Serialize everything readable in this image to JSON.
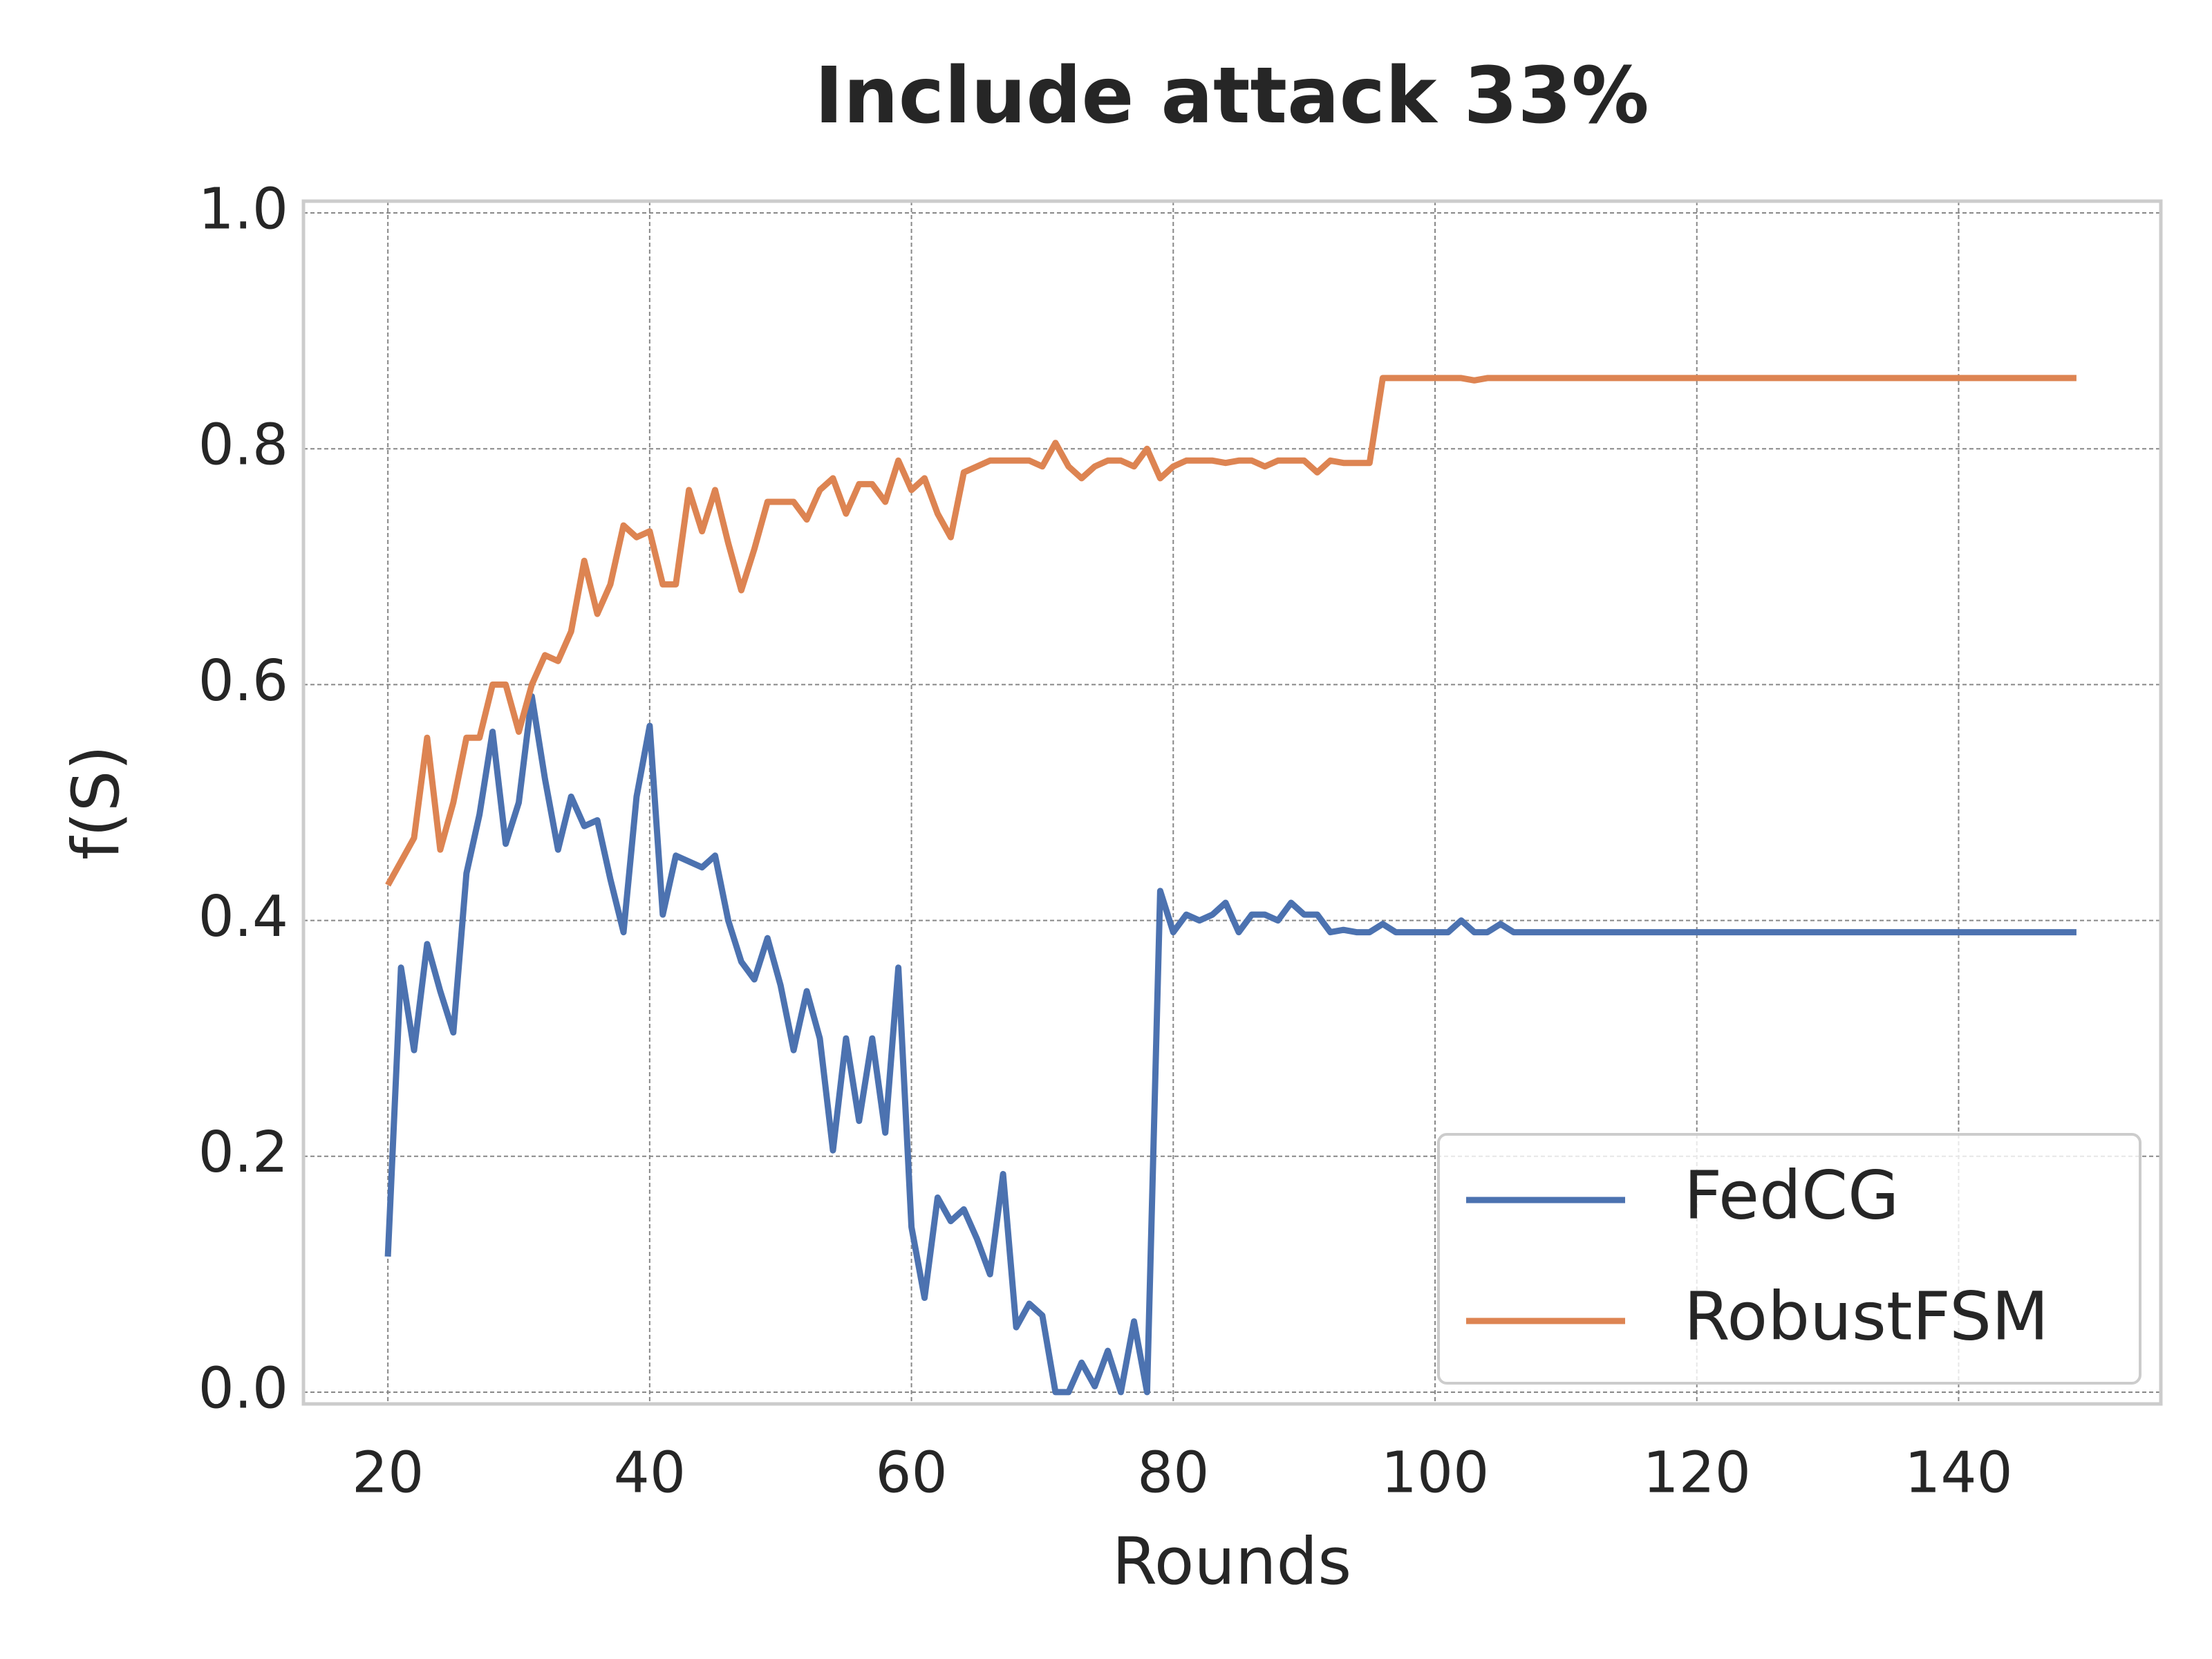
{
  "chart_data": {
    "type": "line",
    "title": "Include attack 33%",
    "xlabel": "Rounds",
    "ylabel": "f(S)",
    "x": [
      20,
      21,
      22,
      23,
      24,
      25,
      26,
      27,
      28,
      29,
      30,
      31,
      32,
      33,
      34,
      35,
      36,
      37,
      38,
      39,
      40,
      41,
      42,
      43,
      44,
      45,
      46,
      47,
      48,
      49,
      50,
      51,
      52,
      53,
      54,
      55,
      56,
      57,
      58,
      59,
      60,
      61,
      62,
      63,
      64,
      65,
      66,
      67,
      68,
      69,
      70,
      71,
      72,
      73,
      74,
      75,
      76,
      77,
      78,
      79,
      80,
      81,
      82,
      83,
      84,
      85,
      86,
      87,
      88,
      89,
      90,
      91,
      92,
      93,
      94,
      95,
      96,
      97,
      98,
      99,
      100,
      101,
      102,
      103,
      104,
      105,
      106,
      107,
      108,
      109,
      110,
      111,
      112,
      113,
      114,
      115,
      116,
      117,
      118,
      119,
      120,
      121,
      122,
      123,
      124,
      125,
      126,
      127,
      128,
      129,
      130,
      131,
      132,
      133,
      134,
      135,
      136,
      137,
      138,
      139,
      140,
      141,
      142,
      143,
      144,
      145,
      146,
      147,
      148,
      149
    ],
    "series": [
      {
        "name": "FedCG",
        "color": "#4c72b0",
        "values": [
          0.115,
          0.36,
          0.29,
          0.38,
          0.34,
          0.305,
          0.44,
          0.49,
          0.56,
          0.465,
          0.5,
          0.59,
          0.52,
          0.46,
          0.505,
          0.48,
          0.485,
          0.435,
          0.39,
          0.505,
          0.565,
          0.405,
          0.455,
          0.45,
          0.445,
          0.455,
          0.4,
          0.365,
          0.35,
          0.385,
          0.345,
          0.29,
          0.34,
          0.3,
          0.205,
          0.3,
          0.23,
          0.3,
          0.22,
          0.36,
          0.14,
          0.08,
          0.165,
          0.145,
          0.155,
          0.13,
          0.1,
          0.185,
          0.055,
          0.075,
          0.065,
          0,
          0,
          0.025,
          0.005,
          0.035,
          0,
          0.06,
          0,
          0.425,
          0.39,
          0.405,
          0.4,
          0.405,
          0.415,
          0.39,
          0.405,
          0.405,
          0.4,
          0.415,
          0.405,
          0.405,
          0.39,
          0.392,
          0.39,
          0.39,
          0.397,
          0.39,
          0.39,
          0.39,
          0.39,
          0.39,
          0.4,
          0.39,
          0.39,
          0.397,
          0.39,
          0.39,
          0.39,
          0.39,
          0.39,
          0.39,
          0.39,
          0.39,
          0.39,
          0.39,
          0.39,
          0.39,
          0.39,
          0.39,
          0.39,
          0.39,
          0.39,
          0.39,
          0.39,
          0.39,
          0.39,
          0.39,
          0.39,
          0.39,
          0.39,
          0.39,
          0.39,
          0.39,
          0.39,
          0.39,
          0.39,
          0.39,
          0.39,
          0.39,
          0.39,
          0.39,
          0.39,
          0.39,
          0.39,
          0.39,
          0.39,
          0.39,
          0.39,
          0.39
        ]
      },
      {
        "name": "RobustFSM",
        "color": "#dd8452",
        "values": [
          0.43,
          0.45,
          0.47,
          0.555,
          0.46,
          0.5,
          0.555,
          0.555,
          0.6,
          0.6,
          0.56,
          0.6,
          0.625,
          0.62,
          0.645,
          0.705,
          0.66,
          0.685,
          0.735,
          0.725,
          0.73,
          0.685,
          0.685,
          0.765,
          0.73,
          0.765,
          0.72,
          0.68,
          0.715,
          0.755,
          0.755,
          0.755,
          0.74,
          0.765,
          0.775,
          0.745,
          0.77,
          0.77,
          0.755,
          0.79,
          0.765,
          0.775,
          0.745,
          0.725,
          0.78,
          0.785,
          0.79,
          0.79,
          0.79,
          0.79,
          0.785,
          0.805,
          0.785,
          0.775,
          0.785,
          0.79,
          0.79,
          0.785,
          0.8,
          0.775,
          0.785,
          0.79,
          0.79,
          0.79,
          0.788,
          0.79,
          0.79,
          0.785,
          0.79,
          0.79,
          0.79,
          0.78,
          0.79,
          0.788,
          0.788,
          0.788,
          0.86,
          0.86,
          0.86,
          0.86,
          0.86,
          0.86,
          0.86,
          0.858,
          0.86,
          0.86,
          0.86,
          0.86,
          0.86,
          0.86,
          0.86,
          0.86,
          0.86,
          0.86,
          0.86,
          0.86,
          0.86,
          0.86,
          0.86,
          0.86,
          0.86,
          0.86,
          0.86,
          0.86,
          0.86,
          0.86,
          0.86,
          0.86,
          0.86,
          0.86,
          0.86,
          0.86,
          0.86,
          0.86,
          0.86,
          0.86,
          0.86,
          0.86,
          0.86,
          0.86,
          0.86,
          0.86,
          0.86,
          0.86,
          0.86,
          0.86,
          0.86,
          0.86,
          0.86,
          0.86
        ]
      }
    ],
    "xlim": [
      13.55,
      155.45
    ],
    "ylim": [
      -0.01,
      1.01
    ],
    "xticks": [
      20,
      40,
      60,
      80,
      100,
      120,
      140
    ],
    "yticks": [
      {
        "value": 0,
        "label": "0.0"
      },
      0.2,
      0.4,
      0.6,
      0.8,
      {
        "value": 1,
        "label": "1.0"
      }
    ],
    "grid": true,
    "legend": "lower right"
  }
}
